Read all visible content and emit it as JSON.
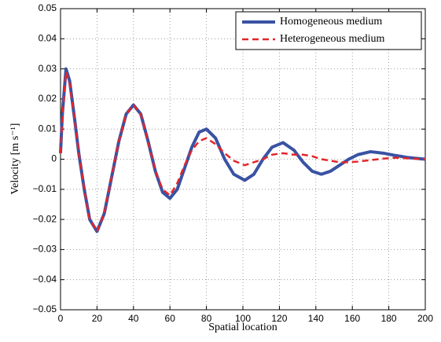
{
  "chart_data": {
    "type": "line",
    "xlabel": "Spatial location",
    "ylabel": "Velocity [m s⁻¹]",
    "x": [
      0,
      1,
      3,
      5,
      8,
      10,
      13,
      16,
      20,
      24,
      28,
      32,
      36,
      40,
      44,
      48,
      52,
      56,
      60,
      64,
      68,
      72,
      76,
      80,
      85,
      90,
      95,
      101,
      106,
      111,
      116,
      122,
      128,
      133,
      138,
      143,
      148,
      153,
      158,
      163,
      170,
      177,
      184,
      190,
      200
    ],
    "series": [
      {
        "name": "Homogeneous medium",
        "color": "#3a52a3",
        "style": "solid",
        "values": [
          0.002,
          0.015,
          0.03,
          0.026,
          0.012,
          0.002,
          -0.01,
          -0.02,
          -0.024,
          -0.018,
          -0.006,
          0.006,
          0.015,
          0.018,
          0.015,
          0.006,
          -0.004,
          -0.011,
          -0.013,
          -0.01,
          -0.003,
          0.004,
          0.009,
          0.01,
          0.007,
          0.0,
          -0.005,
          -0.007,
          -0.005,
          0.0,
          0.004,
          0.0055,
          0.003,
          -0.001,
          -0.004,
          -0.005,
          -0.004,
          -0.002,
          0.0,
          0.0015,
          0.0025,
          0.002,
          0.0012,
          0.0006,
          0.0
        ]
      },
      {
        "name": "Heterogeneous medium",
        "color": "#e3262b",
        "style": "dashed",
        "values": [
          0.002,
          0.014,
          0.029,
          0.025,
          0.012,
          0.002,
          -0.01,
          -0.02,
          -0.024,
          -0.018,
          -0.006,
          0.006,
          0.015,
          0.018,
          0.015,
          0.006,
          -0.004,
          -0.01,
          -0.012,
          -0.008,
          -0.002,
          0.003,
          0.006,
          0.007,
          0.005,
          0.002,
          -0.0005,
          -0.002,
          -0.001,
          0.0,
          0.0015,
          0.002,
          0.0015,
          0.0015,
          0.001,
          0.0,
          -0.0005,
          -0.001,
          -0.001,
          -0.0008,
          -0.0003,
          0.0002,
          0.0005,
          0.0003,
          0.0
        ]
      }
    ],
    "xlim": [
      0,
      200
    ],
    "xticks": [
      0,
      20,
      40,
      60,
      80,
      100,
      120,
      140,
      160,
      180,
      200
    ],
    "ylim": [
      -0.05,
      0.05
    ],
    "yticks": [
      {
        "value": -0.05,
        "label": "−0.05"
      },
      {
        "value": -0.04,
        "label": "−0.04"
      },
      {
        "value": -0.03,
        "label": "−0.03"
      },
      {
        "value": -0.02,
        "label": "−0.02"
      },
      {
        "value": -0.01,
        "label": "−0.01"
      },
      0,
      0.01,
      0.02,
      0.03,
      0.04,
      0.05
    ],
    "grid": true,
    "legend": "upper right"
  }
}
